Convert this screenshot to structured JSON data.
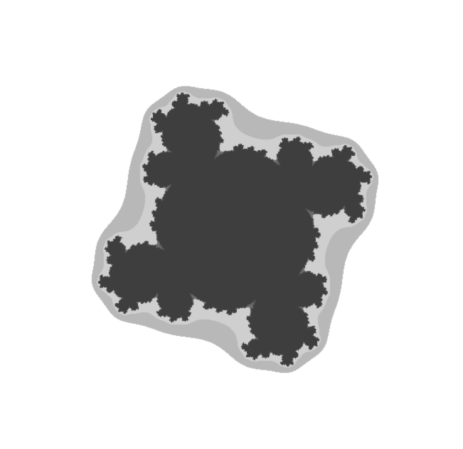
{
  "image": {
    "subject": "fractal",
    "colors": {
      "background": "#ffffff",
      "shape_fill": "#cfcfcf",
      "shape_edge": "#b8b8b8",
      "detail_dark": "#3e3e3e",
      "detail_mid": "#6e6e6e"
    }
  }
}
